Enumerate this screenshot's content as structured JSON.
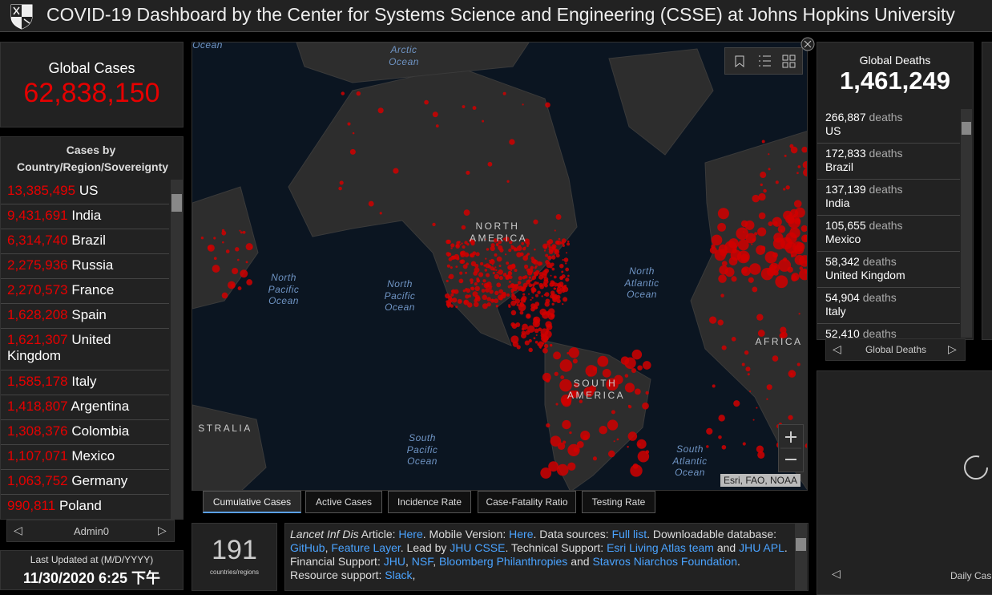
{
  "header": {
    "title": "COVID-19 Dashboard by the Center for Systems Science and Engineering (CSSE) at Johns Hopkins University"
  },
  "global_cases": {
    "label": "Global Cases",
    "value": "62,838,150"
  },
  "cases_list": {
    "title": "Cases by Country/Region/Sovereignty",
    "rows": [
      {
        "count": "13,385,495",
        "name": "US"
      },
      {
        "count": "9,431,691",
        "name": "India"
      },
      {
        "count": "6,314,740",
        "name": "Brazil"
      },
      {
        "count": "2,275,936",
        "name": "Russia"
      },
      {
        "count": "2,270,573",
        "name": "France"
      },
      {
        "count": "1,628,208",
        "name": "Spain"
      },
      {
        "count": "1,621,307",
        "name": "United Kingdom"
      },
      {
        "count": "1,585,178",
        "name": "Italy"
      },
      {
        "count": "1,418,807",
        "name": "Argentina"
      },
      {
        "count": "1,308,376",
        "name": "Colombia"
      },
      {
        "count": "1,107,071",
        "name": "Mexico"
      },
      {
        "count": "1,063,752",
        "name": "Germany"
      },
      {
        "count": "990,811",
        "name": "Poland"
      }
    ],
    "nav": "Admin0"
  },
  "last_updated": {
    "label": "Last Updated at (M/D/YYYY)",
    "value": "11/30/2020 6:25 下午"
  },
  "map": {
    "labels": [
      "Ocean",
      "Arctic Ocean",
      "NORTH AMERICA",
      "North Pacific Ocean",
      "North Pacific Ocean",
      "North Atlantic Ocean",
      "SOUTH AMERICA",
      "South Pacific Ocean",
      "South Atlantic Ocean",
      "AFRICA",
      "STRALIA"
    ],
    "attribution": "Esri, FAO, NOAA",
    "tabs": [
      "Cumulative Cases",
      "Active Cases",
      "Incidence Rate",
      "Case-Fatality Ratio",
      "Testing Rate"
    ]
  },
  "countries": {
    "value": "191",
    "label": "countries/regions"
  },
  "info": {
    "segments": [
      {
        "text": "Lancet Inf Dis",
        "style": "italic"
      },
      {
        "text": " Article: "
      },
      {
        "text": "Here",
        "style": "link"
      },
      {
        "text": ". Mobile Version: "
      },
      {
        "text": "Here",
        "style": "link"
      },
      {
        "text": ". Data sources: "
      },
      {
        "text": "Full list",
        "style": "link"
      },
      {
        "text": ". Downloadable database: "
      },
      {
        "text": "GitHub",
        "style": "link"
      },
      {
        "text": ", "
      },
      {
        "text": "Feature Layer",
        "style": "link"
      },
      {
        "text": ". Lead by "
      },
      {
        "text": "JHU CSSE",
        "style": "link"
      },
      {
        "text": ". Technical Support: "
      },
      {
        "text": "Esri Living Atlas team",
        "style": "link"
      },
      {
        "text": " and "
      },
      {
        "text": "JHU APL",
        "style": "link"
      },
      {
        "text": ". Financial Support: "
      },
      {
        "text": "JHU",
        "style": "link"
      },
      {
        "text": ", "
      },
      {
        "text": "NSF",
        "style": "link"
      },
      {
        "text": ", "
      },
      {
        "text": "Bloomberg Philanthropies",
        "style": "link"
      },
      {
        "text": " and "
      },
      {
        "text": "Stavros Niarchos Foundation",
        "style": "link"
      },
      {
        "text": ". Resource support: "
      },
      {
        "text": "Slack",
        "style": "link"
      },
      {
        "text": ","
      }
    ]
  },
  "global_deaths": {
    "label": "Global Deaths",
    "value": "1,461,249",
    "rows": [
      {
        "count": "266,887",
        "unit": "deaths",
        "name": "US"
      },
      {
        "count": "172,833",
        "unit": "deaths",
        "name": "Brazil"
      },
      {
        "count": "137,139",
        "unit": "deaths",
        "name": "India"
      },
      {
        "count": "105,655",
        "unit": "deaths",
        "name": "Mexico"
      },
      {
        "count": "58,342",
        "unit": "deaths",
        "name": "United Kingdom"
      },
      {
        "count": "54,904",
        "unit": "deaths",
        "name": "Italy"
      },
      {
        "count": "52,410",
        "unit": "deaths"
      }
    ],
    "nav": "Global Deaths"
  },
  "daily_panel": {
    "label": "Daily Cas"
  }
}
